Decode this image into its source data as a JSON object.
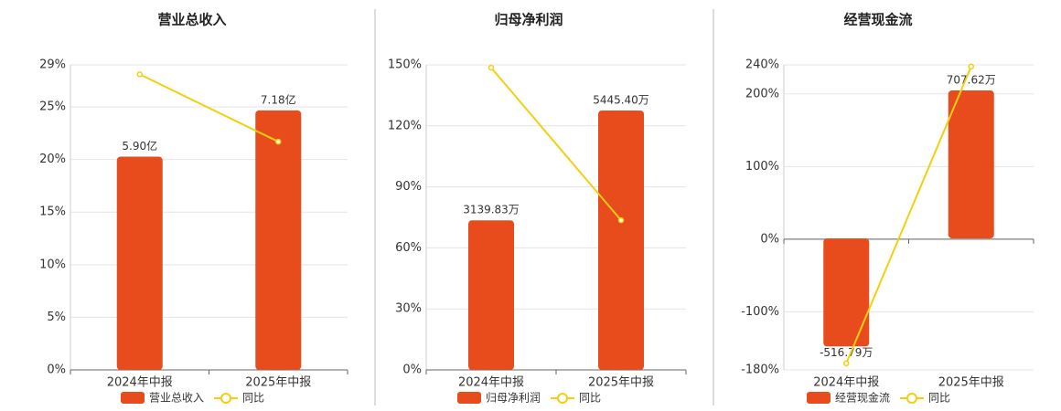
{
  "chart_data": [
    {
      "type": "combo",
      "title": "营业总收入",
      "categories": [
        "2024年中报",
        "2025年中报"
      ],
      "ylim": [
        0,
        29
      ],
      "yticks": [
        {
          "value": 0,
          "label": "0%"
        },
        {
          "value": 5,
          "label": "5%"
        },
        {
          "value": 10,
          "label": "10%"
        },
        {
          "value": 15,
          "label": "15%"
        },
        {
          "value": 20,
          "label": "20%"
        },
        {
          "value": 25,
          "label": "25%"
        },
        {
          "value": 29,
          "label": "29%"
        }
      ],
      "y2lim": [
        0,
        8.44
      ],
      "grid": true,
      "series": [
        {
          "name": "营业总收入",
          "type": "bar",
          "axis": "y2",
          "color": "#e84c1c",
          "values": [
            5.9,
            7.18
          ],
          "value_labels": [
            "5.90亿",
            "7.18亿"
          ]
        },
        {
          "name": "同比",
          "type": "line",
          "color": "#f2cf10",
          "values": [
            28.1,
            21.7
          ]
        }
      ]
    },
    {
      "type": "combo",
      "title": "归母净利润",
      "categories": [
        "2024年中报",
        "2025年中报"
      ],
      "ylim": [
        0,
        150
      ],
      "yticks": [
        {
          "value": 0,
          "label": "0%"
        },
        {
          "value": 30,
          "label": "30%"
        },
        {
          "value": 60,
          "label": "60%"
        },
        {
          "value": 90,
          "label": "90%"
        },
        {
          "value": 120,
          "label": "120%"
        },
        {
          "value": 150,
          "label": "150%"
        }
      ],
      "y2lim": [
        0,
        6404
      ],
      "grid": true,
      "series": [
        {
          "name": "归母净利润",
          "type": "bar",
          "axis": "y2",
          "color": "#e84c1c",
          "values": [
            3139.83,
            5445.4
          ],
          "value_labels": [
            "3139.83万",
            "5445.40万"
          ]
        },
        {
          "name": "同比",
          "type": "line",
          "color": "#f2cf10",
          "values": [
            148.6,
            73.6
          ]
        }
      ]
    },
    {
      "type": "combo",
      "title": "经营现金流",
      "categories": [
        "2024年中报",
        "2025年中报"
      ],
      "ylim": [
        -180,
        240
      ],
      "yticks": [
        {
          "value": -180,
          "label": "-180%"
        },
        {
          "value": -100,
          "label": "-100%"
        },
        {
          "value": 0,
          "label": "0%"
        },
        {
          "value": 100,
          "label": "100%"
        },
        {
          "value": 200,
          "label": "200%"
        },
        {
          "value": 240,
          "label": "240%"
        }
      ],
      "y2lim": [
        -629,
        830
      ],
      "grid": true,
      "series": [
        {
          "name": "经营现金流",
          "type": "bar",
          "axis": "y2",
          "color": "#e84c1c",
          "values": [
            -516.79,
            707.62
          ],
          "value_labels": [
            "-516.79万",
            "707.62万"
          ]
        },
        {
          "name": "同比",
          "type": "line",
          "color": "#f2cf10",
          "values": [
            -171,
            237.7
          ]
        }
      ]
    }
  ]
}
